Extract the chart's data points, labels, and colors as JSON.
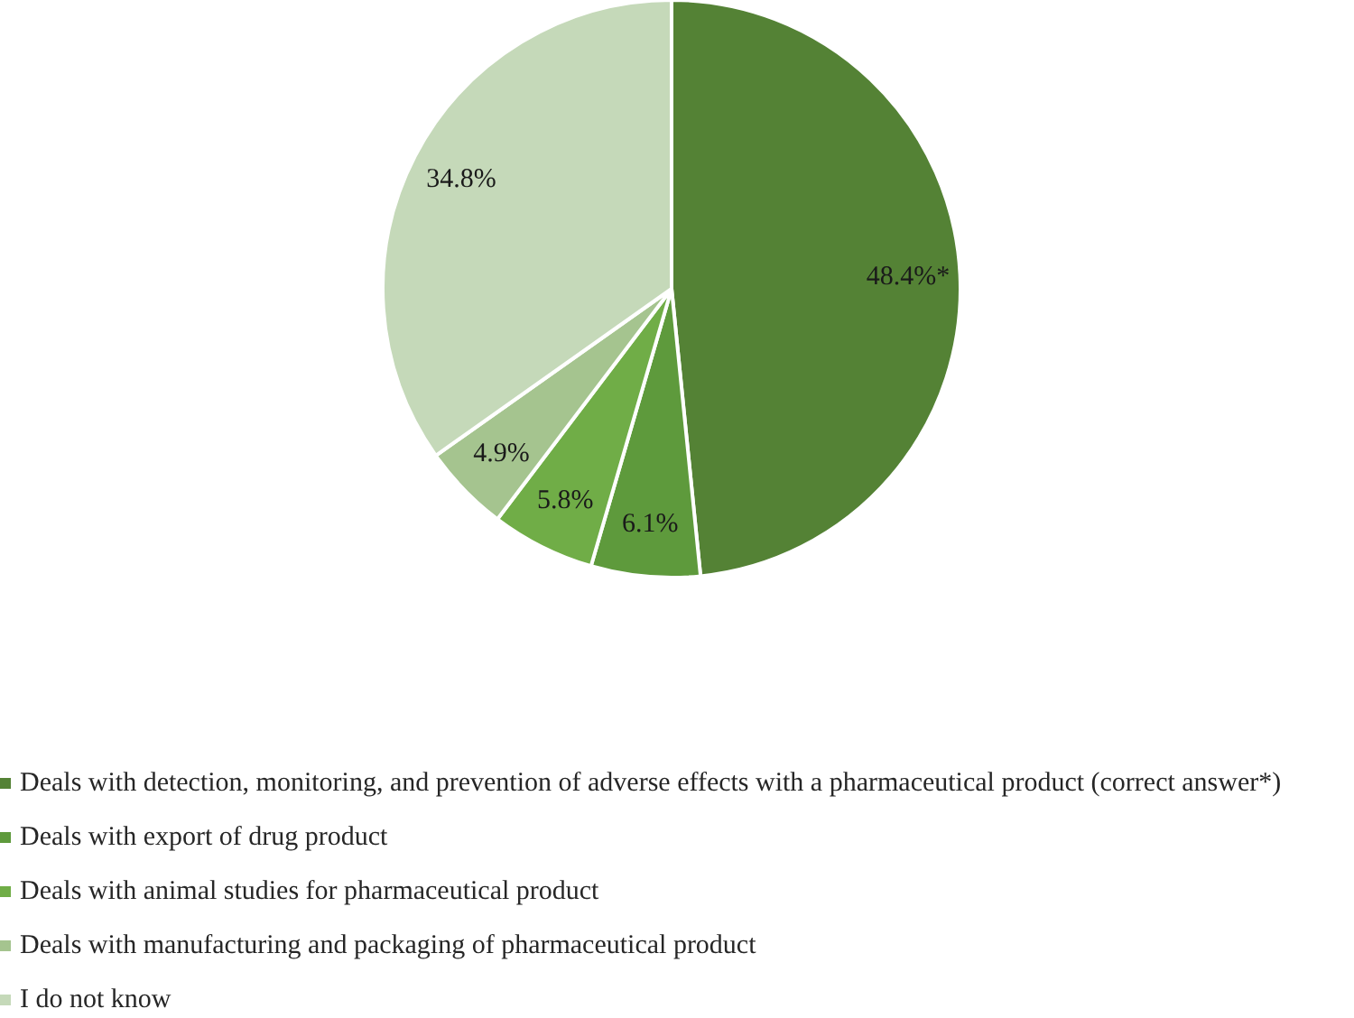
{
  "chart_data": {
    "type": "pie",
    "categories": [
      "Deals with detection, monitoring, and prevention of adverse effects with a pharmaceutical product (correct answer*)",
      "Deals with export of drug product",
      "Deals with animal studies for pharmaceutical product",
      "Deals with manufacturing and packaging of pharmaceutical product",
      "I do not know"
    ],
    "values": [
      48.4,
      6.1,
      5.8,
      4.9,
      34.8
    ],
    "colors": [
      "#548235",
      "#5e9a3c",
      "#70ad47",
      "#a5c48f",
      "#c5d9b9"
    ],
    "value_labels": [
      "48.4%*",
      "6.1%",
      "5.8%",
      "4.9%",
      "34.8%"
    ],
    "legend": "bottom left"
  }
}
